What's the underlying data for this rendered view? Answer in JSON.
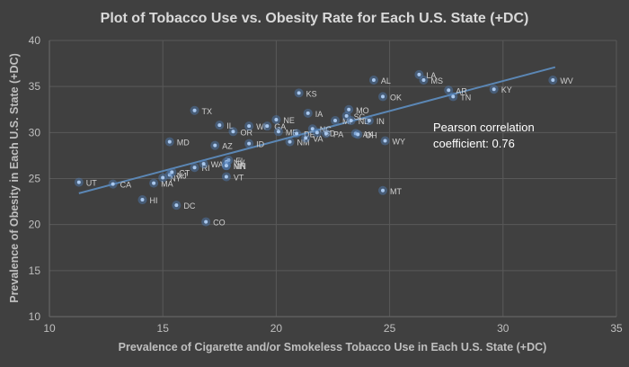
{
  "chart_data": {
    "type": "scatter",
    "title": "Plot of Tobacco Use vs. Obesity Rate for Each U.S. State (+DC)",
    "xlabel": "Prevalence of Cigarette and/or Smokeless Tobacco Use in Each U.S. State (+DC)",
    "ylabel": "Prevalence of Obesity in Each U.S. State (+DC)",
    "xlim": [
      10,
      35
    ],
    "ylim": [
      10,
      40
    ],
    "xticks": [
      10,
      15,
      20,
      25,
      30,
      35
    ],
    "yticks": [
      10,
      15,
      20,
      25,
      30,
      35,
      40
    ],
    "grid": "horizontal",
    "annotation": [
      "Pearson correlation",
      "coefficient: 0.76"
    ],
    "trendline": {
      "x": [
        11.3,
        32.3
      ],
      "y": [
        23.4,
        37.1
      ]
    },
    "points": [
      {
        "label": "UT",
        "x": 11.3,
        "y": 24.6
      },
      {
        "label": "CA",
        "x": 12.8,
        "y": 24.4
      },
      {
        "label": "HI",
        "x": 14.1,
        "y": 22.7
      },
      {
        "label": "MA",
        "x": 14.6,
        "y": 24.5
      },
      {
        "label": "NY",
        "x": 15.0,
        "y": 25.1
      },
      {
        "label": "NJ",
        "x": 15.3,
        "y": 25.4
      },
      {
        "label": "CT",
        "x": 15.4,
        "y": 25.7
      },
      {
        "label": "DC",
        "x": 15.6,
        "y": 22.1
      },
      {
        "label": "RI",
        "x": 16.4,
        "y": 26.2
      },
      {
        "label": "WA",
        "x": 16.8,
        "y": 26.6
      },
      {
        "label": "FL",
        "x": 17.9,
        "y": 27.0
      },
      {
        "label": "NV",
        "x": 17.8,
        "y": 26.8
      },
      {
        "label": "NH",
        "x": 17.8,
        "y": 26.4
      },
      {
        "label": "MN",
        "x": 17.8,
        "y": 26.4
      },
      {
        "label": "VT",
        "x": 17.8,
        "y": 25.2
      },
      {
        "label": "CO",
        "x": 16.9,
        "y": 20.3
      },
      {
        "label": "MD",
        "x": 15.3,
        "y": 29.0
      },
      {
        "label": "TX",
        "x": 16.4,
        "y": 32.4
      },
      {
        "label": "IL",
        "x": 17.5,
        "y": 30.8
      },
      {
        "label": "AZ",
        "x": 17.3,
        "y": 28.6
      },
      {
        "label": "OR",
        "x": 18.1,
        "y": 30.1
      },
      {
        "label": "WI",
        "x": 18.8,
        "y": 30.7
      },
      {
        "label": "GA",
        "x": 19.6,
        "y": 30.7
      },
      {
        "label": "ID",
        "x": 18.8,
        "y": 28.8
      },
      {
        "label": "ME",
        "x": 20.1,
        "y": 30.1
      },
      {
        "label": "NE",
        "x": 20.0,
        "y": 31.4
      },
      {
        "label": "KS",
        "x": 21.0,
        "y": 34.3
      },
      {
        "label": "IA",
        "x": 21.4,
        "y": 32.1
      },
      {
        "label": "DE",
        "x": 20.9,
        "y": 29.9
      },
      {
        "label": "NM",
        "x": 20.6,
        "y": 29.0
      },
      {
        "label": "VA",
        "x": 21.3,
        "y": 29.4
      },
      {
        "label": "NC",
        "x": 21.6,
        "y": 30.4
      },
      {
        "label": "SD",
        "x": 21.8,
        "y": 30.0
      },
      {
        "label": "PA",
        "x": 22.2,
        "y": 29.9
      },
      {
        "label": "MI",
        "x": 22.6,
        "y": 31.3
      },
      {
        "label": "MO",
        "x": 23.2,
        "y": 32.5
      },
      {
        "label": "SC",
        "x": 23.1,
        "y": 31.8
      },
      {
        "label": "ND",
        "x": 23.3,
        "y": 31.3
      },
      {
        "label": "AK",
        "x": 23.5,
        "y": 29.9
      },
      {
        "label": "OH",
        "x": 23.6,
        "y": 29.8
      },
      {
        "label": "IN",
        "x": 24.1,
        "y": 31.3
      },
      {
        "label": "AL",
        "x": 24.3,
        "y": 35.7
      },
      {
        "label": "OK",
        "x": 24.7,
        "y": 33.9
      },
      {
        "label": "WY",
        "x": 24.8,
        "y": 29.1
      },
      {
        "label": "MT",
        "x": 24.7,
        "y": 23.7
      },
      {
        "label": "LA",
        "x": 26.3,
        "y": 36.3
      },
      {
        "label": "MS",
        "x": 26.5,
        "y": 35.7
      },
      {
        "label": "AR",
        "x": 27.6,
        "y": 34.6
      },
      {
        "label": "TN",
        "x": 27.8,
        "y": 33.9
      },
      {
        "label": "KY",
        "x": 29.6,
        "y": 34.7
      },
      {
        "label": "WV",
        "x": 32.2,
        "y": 35.7
      }
    ]
  }
}
